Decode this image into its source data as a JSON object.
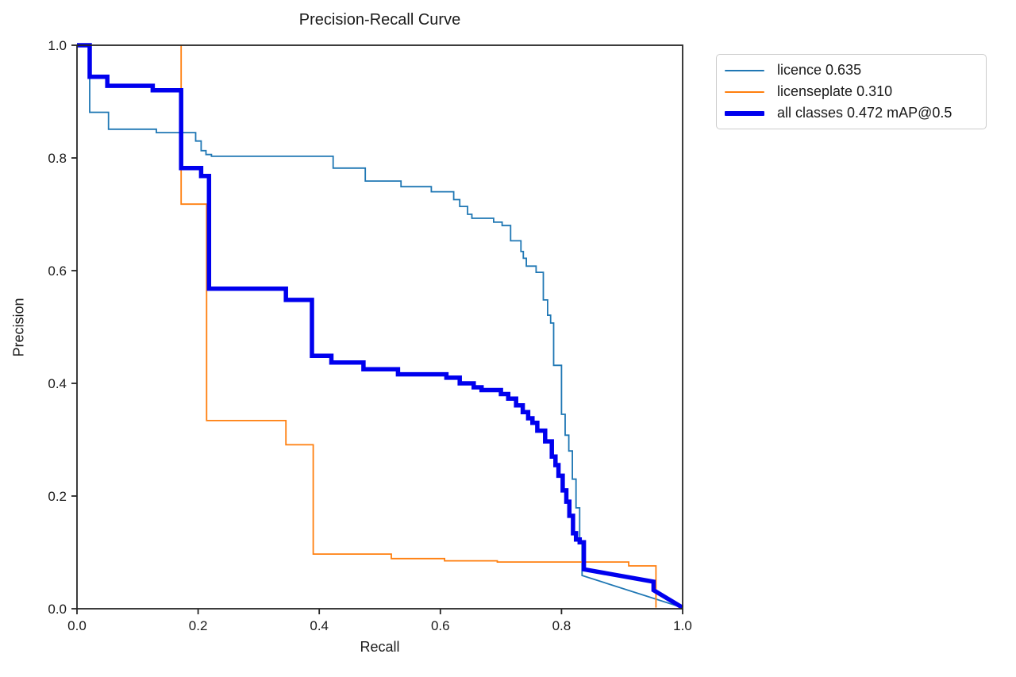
{
  "figure": {
    "title": "Precision-Recall Curve",
    "background": "#ffffff",
    "spine_color": "#262626"
  },
  "chart_data": {
    "type": "line",
    "title": "Precision-Recall Curve",
    "xlabel": "Recall",
    "ylabel": "Precision",
    "xlim": [
      0.0,
      1.0
    ],
    "ylim": [
      0.0,
      1.0
    ],
    "grid": false,
    "legend_position": "outside-upper-right",
    "x_ticks": {
      "values": [
        0.0,
        0.2,
        0.4,
        0.6,
        0.8,
        1.0
      ],
      "labels": [
        "0.0",
        "0.2",
        "0.4",
        "0.6",
        "0.8",
        "1.0"
      ]
    },
    "y_ticks": {
      "values": [
        0.0,
        0.2,
        0.4,
        0.6,
        0.8,
        1.0
      ],
      "labels": [
        "0.0",
        "0.2",
        "0.4",
        "0.6",
        "0.8",
        "1.0"
      ]
    },
    "series": [
      {
        "name": "licence",
        "legend_label": "licence 0.635",
        "ap": 0.635,
        "color": "#1f77b4",
        "line_width": 1.8,
        "points": [
          [
            0.0,
            1.0
          ],
          [
            0.021,
            1.0
          ],
          [
            0.021,
            0.881
          ],
          [
            0.052,
            0.881
          ],
          [
            0.052,
            0.851
          ],
          [
            0.131,
            0.851
          ],
          [
            0.131,
            0.845
          ],
          [
            0.196,
            0.845
          ],
          [
            0.196,
            0.83
          ],
          [
            0.205,
            0.83
          ],
          [
            0.205,
            0.813
          ],
          [
            0.213,
            0.813
          ],
          [
            0.213,
            0.806
          ],
          [
            0.222,
            0.806
          ],
          [
            0.222,
            0.803
          ],
          [
            0.423,
            0.803
          ],
          [
            0.423,
            0.782
          ],
          [
            0.476,
            0.782
          ],
          [
            0.476,
            0.759
          ],
          [
            0.535,
            0.759
          ],
          [
            0.535,
            0.749
          ],
          [
            0.585,
            0.749
          ],
          [
            0.585,
            0.74
          ],
          [
            0.622,
            0.74
          ],
          [
            0.622,
            0.726
          ],
          [
            0.632,
            0.726
          ],
          [
            0.632,
            0.714
          ],
          [
            0.645,
            0.714
          ],
          [
            0.645,
            0.7
          ],
          [
            0.652,
            0.7
          ],
          [
            0.652,
            0.693
          ],
          [
            0.688,
            0.693
          ],
          [
            0.688,
            0.686
          ],
          [
            0.702,
            0.686
          ],
          [
            0.702,
            0.68
          ],
          [
            0.716,
            0.68
          ],
          [
            0.716,
            0.653
          ],
          [
            0.733,
            0.653
          ],
          [
            0.733,
            0.634
          ],
          [
            0.737,
            0.634
          ],
          [
            0.737,
            0.622
          ],
          [
            0.742,
            0.622
          ],
          [
            0.742,
            0.608
          ],
          [
            0.758,
            0.608
          ],
          [
            0.758,
            0.597
          ],
          [
            0.77,
            0.597
          ],
          [
            0.77,
            0.548
          ],
          [
            0.777,
            0.548
          ],
          [
            0.777,
            0.521
          ],
          [
            0.782,
            0.521
          ],
          [
            0.782,
            0.507
          ],
          [
            0.787,
            0.507
          ],
          [
            0.787,
            0.432
          ],
          [
            0.8,
            0.432
          ],
          [
            0.8,
            0.345
          ],
          [
            0.806,
            0.345
          ],
          [
            0.806,
            0.308
          ],
          [
            0.812,
            0.308
          ],
          [
            0.812,
            0.28
          ],
          [
            0.818,
            0.28
          ],
          [
            0.818,
            0.23
          ],
          [
            0.824,
            0.23
          ],
          [
            0.824,
            0.179
          ],
          [
            0.83,
            0.179
          ],
          [
            0.83,
            0.12
          ],
          [
            0.834,
            0.12
          ],
          [
            0.834,
            0.059
          ],
          [
            1.0,
            0.002
          ]
        ]
      },
      {
        "name": "licenseplate",
        "legend_label": "licenseplate 0.310",
        "ap": 0.31,
        "color": "#ff7f0e",
        "line_width": 1.8,
        "points": [
          [
            0.172,
            1.0
          ],
          [
            0.172,
            0.718
          ],
          [
            0.214,
            0.718
          ],
          [
            0.214,
            0.334
          ],
          [
            0.345,
            0.334
          ],
          [
            0.345,
            0.291
          ],
          [
            0.39,
            0.291
          ],
          [
            0.39,
            0.097
          ],
          [
            0.519,
            0.097
          ],
          [
            0.519,
            0.089
          ],
          [
            0.607,
            0.089
          ],
          [
            0.607,
            0.085
          ],
          [
            0.694,
            0.085
          ],
          [
            0.694,
            0.083
          ],
          [
            0.911,
            0.083
          ],
          [
            0.911,
            0.076
          ],
          [
            0.956,
            0.076
          ],
          [
            0.956,
            0.002
          ]
        ]
      },
      {
        "name": "all classes",
        "legend_label": "all classes 0.472 mAP@0.5",
        "ap": 0.472,
        "color": "#0000ee",
        "line_width": 5.5,
        "points": [
          [
            0.0,
            1.0
          ],
          [
            0.021,
            1.0
          ],
          [
            0.021,
            0.944
          ],
          [
            0.05,
            0.944
          ],
          [
            0.05,
            0.928
          ],
          [
            0.125,
            0.928
          ],
          [
            0.125,
            0.92
          ],
          [
            0.172,
            0.92
          ],
          [
            0.172,
            0.782
          ],
          [
            0.205,
            0.782
          ],
          [
            0.205,
            0.768
          ],
          [
            0.218,
            0.768
          ],
          [
            0.218,
            0.568
          ],
          [
            0.345,
            0.568
          ],
          [
            0.345,
            0.548
          ],
          [
            0.388,
            0.548
          ],
          [
            0.388,
            0.449
          ],
          [
            0.42,
            0.449
          ],
          [
            0.42,
            0.437
          ],
          [
            0.473,
            0.437
          ],
          [
            0.473,
            0.425
          ],
          [
            0.53,
            0.425
          ],
          [
            0.53,
            0.416
          ],
          [
            0.61,
            0.416
          ],
          [
            0.61,
            0.41
          ],
          [
            0.632,
            0.41
          ],
          [
            0.632,
            0.4
          ],
          [
            0.655,
            0.4
          ],
          [
            0.655,
            0.393
          ],
          [
            0.668,
            0.393
          ],
          [
            0.668,
            0.388
          ],
          [
            0.7,
            0.388
          ],
          [
            0.7,
            0.381
          ],
          [
            0.712,
            0.381
          ],
          [
            0.712,
            0.373
          ],
          [
            0.725,
            0.373
          ],
          [
            0.725,
            0.361
          ],
          [
            0.736,
            0.361
          ],
          [
            0.736,
            0.349
          ],
          [
            0.745,
            0.349
          ],
          [
            0.745,
            0.338
          ],
          [
            0.752,
            0.338
          ],
          [
            0.752,
            0.33
          ],
          [
            0.76,
            0.33
          ],
          [
            0.76,
            0.316
          ],
          [
            0.773,
            0.316
          ],
          [
            0.773,
            0.297
          ],
          [
            0.784,
            0.297
          ],
          [
            0.784,
            0.27
          ],
          [
            0.79,
            0.27
          ],
          [
            0.79,
            0.255
          ],
          [
            0.795,
            0.255
          ],
          [
            0.795,
            0.236
          ],
          [
            0.802,
            0.236
          ],
          [
            0.802,
            0.21
          ],
          [
            0.808,
            0.21
          ],
          [
            0.808,
            0.19
          ],
          [
            0.813,
            0.19
          ],
          [
            0.813,
            0.165
          ],
          [
            0.819,
            0.165
          ],
          [
            0.819,
            0.134
          ],
          [
            0.824,
            0.134
          ],
          [
            0.824,
            0.123
          ],
          [
            0.83,
            0.123
          ],
          [
            0.83,
            0.118
          ],
          [
            0.837,
            0.118
          ],
          [
            0.837,
            0.07
          ],
          [
            0.952,
            0.048
          ],
          [
            0.952,
            0.033
          ],
          [
            1.0,
            0.002
          ]
        ]
      }
    ]
  },
  "legend": {
    "items": [
      {
        "label": "licence 0.635",
        "color": "#1f77b4",
        "swatch_height": 2
      },
      {
        "label": "licenseplate 0.310",
        "color": "#ff7f0e",
        "swatch_height": 2
      },
      {
        "label": "all classes 0.472 mAP@0.5",
        "color": "#0000ee",
        "swatch_height": 6
      }
    ]
  }
}
